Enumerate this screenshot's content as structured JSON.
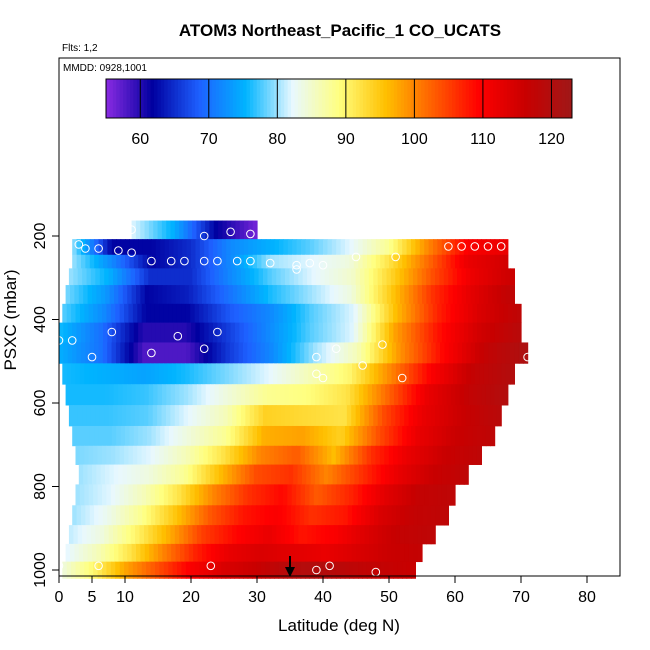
{
  "chart_data": {
    "type": "heatmap",
    "title": "ATOM3 Northeast_Pacific_1 CO_UCATS",
    "annotations": {
      "flights": "Flts: 1,2",
      "dates": "MMDD: 0928,1001"
    },
    "xlabel": "Latitude (deg N)",
    "ylabel": "PSXC (mbar)",
    "xlim": [
      0,
      85
    ],
    "ylim": [
      1020,
      0
    ],
    "xticks": [
      0,
      5,
      10,
      20,
      30,
      40,
      50,
      60,
      70,
      80
    ],
    "yticks": [
      200,
      400,
      600,
      800,
      1000
    ],
    "colorbar": {
      "min": 55,
      "max": 123,
      "ticks": [
        60,
        70,
        80,
        90,
        100,
        110,
        120
      ],
      "colors": [
        "#8a2be2",
        "#0000a0",
        "#1e60ff",
        "#00b4ff",
        "#e8f8ff",
        "#ffff80",
        "#ffc000",
        "#ff6000",
        "#ff0000",
        "#c80000",
        "#a01818"
      ]
    },
    "layers": [
      {
        "p": 185,
        "lat": [
          11,
          30
        ],
        "values": [
          82,
          75,
          62,
          56
        ]
      },
      {
        "p": 230,
        "lat": [
          2,
          68
        ],
        "values": [
          80,
          62,
          62,
          65,
          72,
          75,
          78,
          82,
          88,
          100,
          110,
          112
        ]
      },
      {
        "p": 260,
        "lat": [
          2,
          68
        ],
        "values": [
          80,
          72,
          62,
          65,
          72,
          80,
          82,
          84,
          92,
          102,
          112,
          115
        ]
      },
      {
        "p": 295,
        "lat": [
          1.5,
          69
        ],
        "values": [
          80,
          75,
          65,
          65,
          72,
          78,
          82,
          85,
          94,
          104,
          112,
          116
        ]
      },
      {
        "p": 340,
        "lat": [
          1,
          69
        ],
        "values": [
          79,
          73,
          62,
          64,
          70,
          76,
          80,
          84,
          95,
          106,
          113,
          118
        ]
      },
      {
        "p": 385,
        "lat": [
          0.5,
          70
        ],
        "values": [
          78,
          72,
          62,
          62,
          68,
          72,
          78,
          82,
          96,
          107,
          114,
          118
        ]
      },
      {
        "p": 430,
        "lat": [
          0,
          70
        ],
        "values": [
          76,
          70,
          60,
          60,
          66,
          72,
          78,
          82,
          98,
          108,
          115,
          119
        ]
      },
      {
        "p": 480,
        "lat": [
          0,
          71
        ],
        "values": [
          75,
          70,
          58,
          58,
          66,
          72,
          80,
          86,
          99,
          109,
          117,
          121
        ]
      },
      {
        "p": 530,
        "lat": [
          0.5,
          69
        ],
        "values": [
          76,
          75,
          74,
          76,
          79,
          82,
          86,
          90,
          100,
          110,
          117,
          120
        ]
      },
      {
        "p": 580,
        "lat": [
          1,
          68
        ],
        "values": [
          76,
          76,
          77,
          80,
          84,
          88,
          89,
          92,
          102,
          112,
          117,
          120
        ]
      },
      {
        "p": 630,
        "lat": [
          1.5,
          67
        ],
        "values": [
          77,
          77,
          78,
          82,
          86,
          94,
          93,
          92,
          104,
          112,
          116,
          119
        ]
      },
      {
        "p": 680,
        "lat": [
          2,
          66
        ],
        "values": [
          78,
          78,
          80,
          84,
          88,
          97,
          98,
          94,
          104,
          112,
          116,
          118
        ]
      },
      {
        "p": 725,
        "lat": [
          2.5,
          64
        ],
        "values": [
          79,
          80,
          82,
          86,
          92,
          100,
          103,
          96,
          106,
          112,
          116,
          118
        ]
      },
      {
        "p": 770,
        "lat": [
          3,
          62
        ],
        "values": [
          80,
          82,
          84,
          88,
          96,
          104,
          106,
          100,
          106,
          112,
          116,
          118
        ]
      },
      {
        "p": 820,
        "lat": [
          2.5,
          60
        ],
        "values": [
          80,
          82,
          86,
          92,
          100,
          106,
          109,
          103,
          107,
          113,
          117,
          118
        ]
      },
      {
        "p": 870,
        "lat": [
          2,
          59
        ],
        "values": [
          80,
          83,
          88,
          95,
          103,
          108,
          110,
          106,
          108,
          114,
          117,
          118
        ]
      },
      {
        "p": 915,
        "lat": [
          1.5,
          57
        ],
        "values": [
          81,
          84,
          90,
          97,
          105,
          109,
          112,
          108,
          110,
          114,
          117,
          118
        ]
      },
      {
        "p": 960,
        "lat": [
          1,
          55
        ],
        "values": [
          82,
          86,
          92,
          100,
          107,
          112,
          114,
          113,
          112,
          114,
          116,
          117
        ]
      },
      {
        "p": 1000,
        "lat": [
          0.5,
          54
        ],
        "values": [
          84,
          90,
          98,
          104,
          110,
          114,
          116,
          119,
          120,
          118,
          117,
          116
        ]
      }
    ],
    "points": [
      [
        11,
        185
      ],
      [
        22,
        200
      ],
      [
        26,
        190
      ],
      [
        29,
        195
      ],
      [
        3,
        220
      ],
      [
        4,
        230
      ],
      [
        6,
        230
      ],
      [
        9,
        235
      ],
      [
        11,
        240
      ],
      [
        14,
        260
      ],
      [
        17,
        260
      ],
      [
        19,
        260
      ],
      [
        22,
        260
      ],
      [
        24,
        260
      ],
      [
        27,
        260
      ],
      [
        29,
        260
      ],
      [
        32,
        265
      ],
      [
        36,
        270
      ],
      [
        38,
        265
      ],
      [
        40,
        270
      ],
      [
        45,
        250
      ],
      [
        51,
        250
      ],
      [
        59,
        225
      ],
      [
        61,
        225
      ],
      [
        63,
        225
      ],
      [
        65,
        225
      ],
      [
        67,
        225
      ],
      [
        36,
        280
      ],
      [
        0,
        450
      ],
      [
        2,
        450
      ],
      [
        8,
        430
      ],
      [
        14,
        480
      ],
      [
        18,
        440
      ],
      [
        24,
        430
      ],
      [
        22,
        470
      ],
      [
        5,
        490
      ],
      [
        39,
        490
      ],
      [
        42,
        470
      ],
      [
        46,
        510
      ],
      [
        49,
        460
      ],
      [
        52,
        540
      ],
      [
        39,
        530
      ],
      [
        40,
        540
      ],
      [
        71,
        490
      ],
      [
        0,
        990
      ],
      [
        6,
        990
      ],
      [
        23,
        990
      ],
      [
        39,
        1000
      ],
      [
        41,
        990
      ],
      [
        48,
        1005
      ]
    ],
    "marker": {
      "lat": 35,
      "p": 1000
    }
  }
}
